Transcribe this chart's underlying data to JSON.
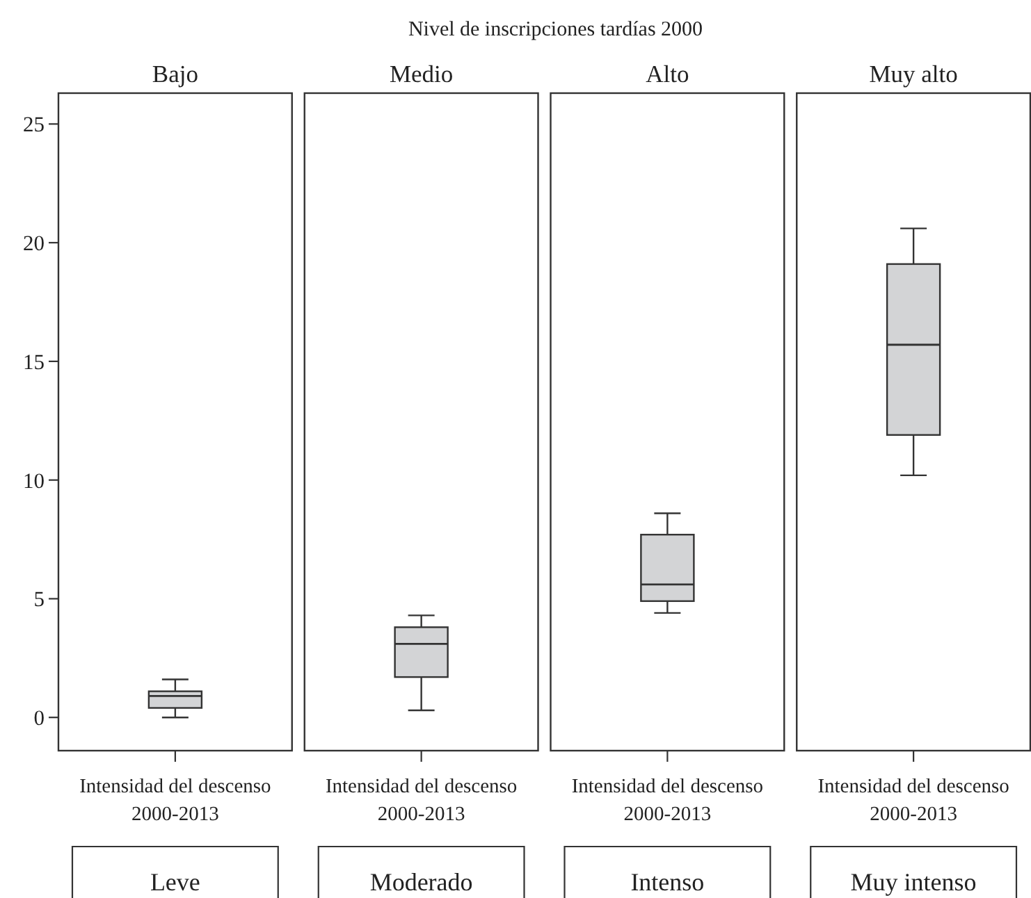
{
  "chart_data": [
    {
      "type": "other",
      "title": "Nivel de inscripciones tardías 2000"
    },
    {
      "type": "box",
      "title": "Bajo",
      "xlabel": "Intensidad del descenso 2000-2013",
      "categories": [
        "Leve"
      ],
      "color": "#d3d4d6",
      "boxes": [
        {
          "low": 0.0,
          "q1": 0.4,
          "median": 0.9,
          "q3": 1.1,
          "high": 1.6
        }
      ],
      "ylim": [
        -1.4,
        26.3
      ],
      "yticks": [
        0,
        5,
        10,
        15,
        20,
        25
      ]
    },
    {
      "type": "box",
      "title": "Medio",
      "xlabel": "Intensidad del descenso 2000-2013",
      "categories": [
        "Moderado"
      ],
      "color": "#d3d4d6",
      "boxes": [
        {
          "low": 0.3,
          "q1": 1.7,
          "median": 3.1,
          "q3": 3.8,
          "high": 4.3
        }
      ],
      "ylim": [
        -1.4,
        26.3
      ],
      "yticks": [
        0,
        5,
        10,
        15,
        20,
        25
      ],
      "tick_labels": "x"
    },
    {
      "type": "box",
      "title": "Alto",
      "xlabel": "Intensidad del descenso 2000-2013",
      "categories": [
        "Intenso"
      ],
      "color": "#d3d4d6",
      "boxes": [
        {
          "low": 4.4,
          "q1": 4.9,
          "median": 5.6,
          "q3": 7.7,
          "high": 8.6
        }
      ],
      "ylim": [
        -1.4,
        26.3
      ],
      "yticks": [
        0,
        5,
        10,
        15,
        20,
        25
      ],
      "tick_labels": "x"
    },
    {
      "type": "box",
      "title": "Muy alto",
      "xlabel": "Intensidad del descenso 2000-2013",
      "categories": [
        "Muy intenso"
      ],
      "color": "#d3d4d6",
      "boxes": [
        {
          "low": 10.2,
          "q1": 11.9,
          "median": 15.7,
          "q3": 19.1,
          "high": 20.6
        }
      ],
      "ylim": [
        -1.4,
        26.3
      ],
      "yticks": [
        0,
        5,
        10,
        15,
        20,
        25
      ],
      "tick_labels": "x"
    }
  ]
}
